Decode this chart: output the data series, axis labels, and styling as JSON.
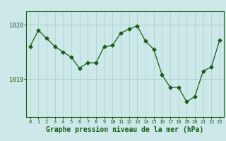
{
  "hours": [
    0,
    1,
    2,
    3,
    4,
    5,
    6,
    7,
    8,
    9,
    10,
    11,
    12,
    13,
    14,
    15,
    16,
    17,
    18,
    19,
    20,
    21,
    22,
    23
  ],
  "pressure": [
    1019.6,
    1019.9,
    1019.75,
    1019.6,
    1019.5,
    1019.4,
    1019.2,
    1019.3,
    1019.3,
    1019.6,
    1019.62,
    1019.85,
    1019.92,
    1019.98,
    1019.7,
    1019.55,
    1019.08,
    1018.85,
    1018.85,
    1018.58,
    1018.68,
    1019.15,
    1019.22,
    1019.72
  ],
  "line_color": "#1a5c1a",
  "marker": "D",
  "marker_size": 2.5,
  "bg_color": "#cce8e8",
  "grid_color": "#aacece",
  "axis_color": "#1a5c1a",
  "tick_color": "#1a5c1a",
  "label_color": "#1a5c1a",
  "xlabel": "Graphe pression niveau de la mer (hPa)",
  "ylim_min": 1018.3,
  "ylim_max": 1020.25,
  "yticks": [
    1019,
    1020
  ],
  "label_fontsize": 7,
  "tick_fontsize": 5
}
